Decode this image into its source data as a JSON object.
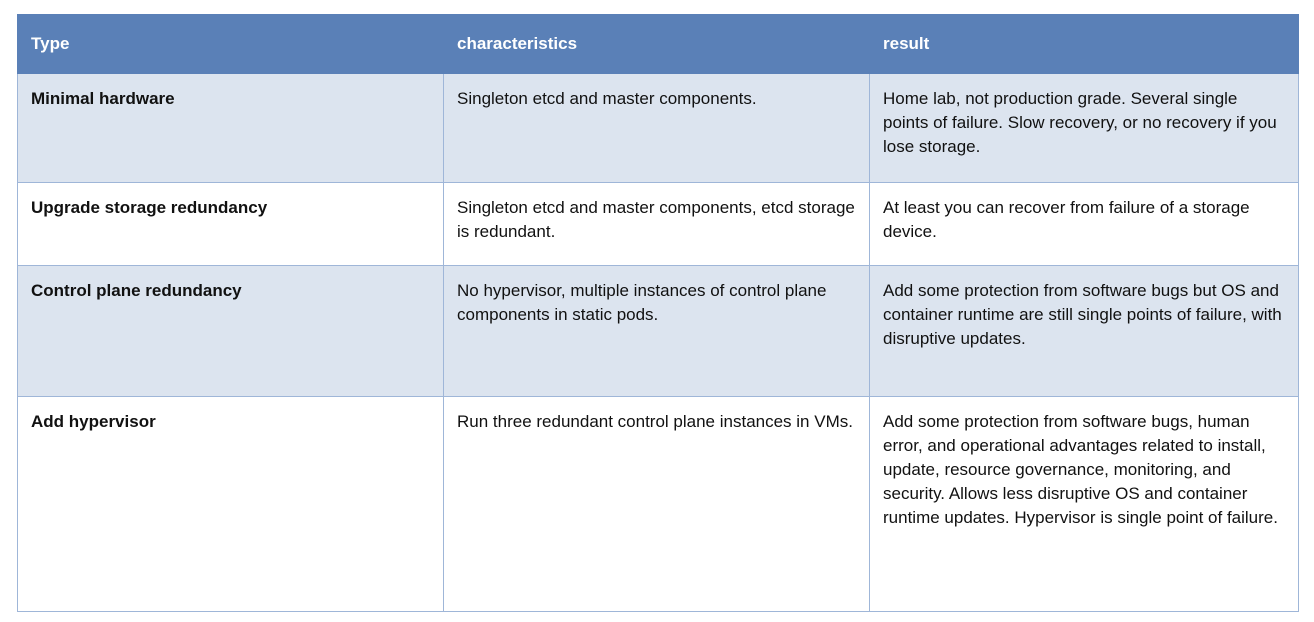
{
  "table": {
    "headers": [
      "Type",
      "characteristics",
      "result"
    ],
    "rows": [
      {
        "type": "Minimal hardware",
        "characteristics": "Singleton etcd and master components.",
        "result": "Home lab, not production grade. Several single points of failure. Slow recovery, or no recovery if you lose storage."
      },
      {
        "type": "Upgrade storage redundancy",
        "characteristics": "Singleton etcd and master components, etcd storage is redundant.",
        "result": "At least you can recover from failure of a storage device."
      },
      {
        "type": "Control plane redundancy",
        "characteristics": "No hypervisor, multiple instances of control plane components in static pods.",
        "result": "Add some protection from software bugs but OS and container runtime are still single points of failure, with disruptive updates."
      },
      {
        "type": "Add hypervisor",
        "characteristics": "Run three redundant control plane instances in VMs.",
        "result": "Add some protection from software bugs, human error, and operational advantages related to install, update, resource governance, monitoring, and security. Allows less disruptive OS and container runtime updates. Hypervisor is single point of failure."
      }
    ]
  },
  "colors": {
    "header_bg": "#5a80b7",
    "row_alt_bg": "#dce4ef",
    "border": "#9fb6d8"
  }
}
